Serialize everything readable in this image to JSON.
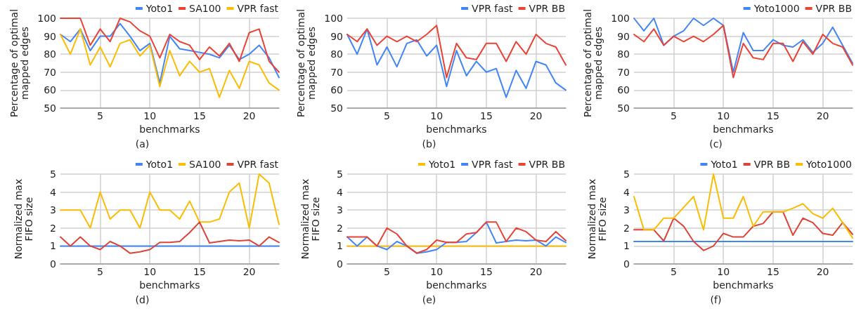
{
  "chart_data": [
    {
      "type": "line",
      "xlabel": "benchmarks",
      "ylabel": "Percentage of optimal mapped edges",
      "annotations": [
        "(a)"
      ],
      "x": [
        1,
        2,
        3,
        4,
        5,
        6,
        7,
        8,
        9,
        10,
        11,
        12,
        13,
        14,
        15,
        16,
        17,
        18,
        19,
        20,
        21,
        22,
        23
      ],
      "xlim": [
        1,
        23
      ],
      "xticks": [
        5,
        10,
        15,
        20
      ],
      "ylim": [
        50,
        100
      ],
      "yticks": [
        50,
        60,
        70,
        80,
        90,
        100
      ],
      "grid": true,
      "legend": "top right",
      "series": [
        {
          "name": "Yoto1",
          "color": "#4285f4",
          "values": [
            91,
            87,
            94,
            82,
            90,
            90,
            97,
            90,
            82,
            86,
            64,
            90,
            83,
            82,
            81,
            80,
            78,
            85,
            77,
            80,
            85,
            78,
            67
          ]
        },
        {
          "name": "SA100",
          "color": "#ea4335",
          "values": [
            100,
            100,
            100,
            85,
            94,
            87,
            100,
            98,
            93,
            90,
            78,
            91,
            87,
            85,
            77,
            84,
            79,
            86,
            76,
            92,
            94,
            76,
            70
          ]
        },
        {
          "name": "VPR fast",
          "color": "#fbbc04",
          "values": [
            91,
            80,
            94,
            74,
            84,
            73,
            86,
            88,
            79,
            85,
            62,
            82,
            68,
            76,
            70,
            72,
            56,
            71,
            61,
            76,
            74,
            64,
            60
          ]
        }
      ]
    },
    {
      "type": "line",
      "xlabel": "benchmarks",
      "ylabel": "Percentage of optimal mapped edges",
      "annotations": [
        "(b)"
      ],
      "x": [
        1,
        2,
        3,
        4,
        5,
        6,
        7,
        8,
        9,
        10,
        11,
        12,
        13,
        14,
        15,
        16,
        17,
        18,
        19,
        20,
        21,
        22,
        23
      ],
      "xlim": [
        1,
        23
      ],
      "xticks": [
        5,
        10,
        15,
        20
      ],
      "ylim": [
        50,
        100
      ],
      "yticks": [
        50,
        60,
        70,
        80,
        90,
        100
      ],
      "grid": true,
      "legend": "top right",
      "series": [
        {
          "name": "VPR fast",
          "color": "#4285f4",
          "values": [
            91,
            80,
            94,
            74,
            84,
            73,
            86,
            88,
            79,
            85,
            62,
            82,
            68,
            76,
            70,
            72,
            56,
            71,
            61,
            76,
            74,
            64,
            60
          ]
        },
        {
          "name": "VPR BB",
          "color": "#ea4335",
          "values": [
            91,
            87,
            94,
            85,
            90,
            87,
            90,
            87,
            91,
            96,
            67,
            86,
            78,
            77,
            86,
            86,
            76,
            87,
            80,
            91,
            86,
            84,
            74
          ]
        }
      ]
    },
    {
      "type": "line",
      "xlabel": "benchmarks",
      "ylabel": "Percentage of optimal mapped edges",
      "annotations": [
        "(c)"
      ],
      "x": [
        1,
        2,
        3,
        4,
        5,
        6,
        7,
        8,
        9,
        10,
        11,
        12,
        13,
        14,
        15,
        16,
        17,
        18,
        19,
        20,
        21,
        22,
        23
      ],
      "xlim": [
        1,
        23
      ],
      "xticks": [
        5,
        10,
        15,
        20
      ],
      "ylim": [
        50,
        100
      ],
      "yticks": [
        50,
        60,
        70,
        80,
        90,
        100
      ],
      "grid": true,
      "legend": "top right",
      "series": [
        {
          "name": "Yoto1000",
          "color": "#4285f4",
          "values": [
            100,
            93,
            100,
            85,
            90,
            93,
            100,
            96,
            100,
            96,
            70,
            92,
            82,
            82,
            88,
            85,
            84,
            88,
            81,
            86,
            95,
            85,
            75
          ]
        },
        {
          "name": "VPR BB",
          "color": "#ea4335",
          "values": [
            91,
            87,
            94,
            85,
            90,
            87,
            90,
            87,
            91,
            96,
            67,
            86,
            78,
            77,
            86,
            86,
            76,
            87,
            80,
            91,
            86,
            84,
            74
          ]
        }
      ]
    },
    {
      "type": "line",
      "xlabel": "benchmarks",
      "ylabel": "Normalized max FIFO size",
      "annotations": [
        "(d)"
      ],
      "x": [
        1,
        2,
        3,
        4,
        5,
        6,
        7,
        8,
        9,
        10,
        11,
        12,
        13,
        14,
        15,
        16,
        17,
        18,
        19,
        20,
        21,
        22,
        23
      ],
      "xlim": [
        1,
        23
      ],
      "xticks": [
        5,
        10,
        15,
        20
      ],
      "ylim": [
        0,
        5
      ],
      "yticks": [
        0,
        1,
        2,
        3,
        4,
        5
      ],
      "grid": true,
      "legend": "top right",
      "series": [
        {
          "name": "Yoto1",
          "color": "#4285f4",
          "values": [
            1,
            1,
            1,
            1,
            1,
            1,
            1,
            1,
            1,
            1,
            1,
            1,
            1,
            1,
            1,
            1,
            1,
            1,
            1,
            1,
            1,
            1,
            1
          ]
        },
        {
          "name": "SA100",
          "color": "#fbbc04",
          "values": [
            3,
            3,
            3,
            2,
            4,
            2.5,
            3,
            3,
            2,
            4,
            3,
            3,
            2.5,
            3.5,
            2.33,
            2.33,
            2.5,
            4,
            4.5,
            2,
            5,
            4.5,
            2.2
          ]
        },
        {
          "name": "VPR fast",
          "color": "#db4437",
          "values": [
            1.5,
            1,
            1.5,
            1,
            0.8,
            1.25,
            1,
            0.6,
            0.67,
            0.8,
            1.2,
            1.2,
            1.25,
            1.75,
            2.33,
            1.17,
            1.25,
            1.33,
            1.29,
            1.33,
            1,
            1.5,
            1.2
          ]
        }
      ]
    },
    {
      "type": "line",
      "xlabel": "benchmarks",
      "ylabel": "Normalized max FIFO size",
      "annotations": [
        "(e)"
      ],
      "x": [
        1,
        2,
        3,
        4,
        5,
        6,
        7,
        8,
        9,
        10,
        11,
        12,
        13,
        14,
        15,
        16,
        17,
        18,
        19,
        20,
        21,
        22,
        23
      ],
      "xlim": [
        1,
        23
      ],
      "xticks": [
        5,
        10,
        15,
        20
      ],
      "ylim": [
        0,
        5
      ],
      "yticks": [
        0,
        1,
        2,
        3,
        4,
        5
      ],
      "grid": true,
      "legend": "top right",
      "series": [
        {
          "name": "Yoto1",
          "color": "#fbbc04",
          "values": [
            1,
            1,
            1,
            1,
            1,
            1,
            1,
            1,
            1,
            1,
            1,
            1,
            1,
            1,
            1,
            1,
            1,
            1,
            1,
            1,
            1,
            1,
            1
          ]
        },
        {
          "name": "VPR fast",
          "color": "#4285f4",
          "values": [
            1.5,
            1,
            1.5,
            1,
            0.8,
            1.25,
            1,
            0.6,
            0.67,
            0.8,
            1.2,
            1.2,
            1.25,
            1.75,
            2.33,
            1.17,
            1.25,
            1.33,
            1.29,
            1.33,
            1,
            1.5,
            1.2
          ]
        },
        {
          "name": "VPR BB",
          "color": "#ea4335",
          "values": [
            1.5,
            1.5,
            1.5,
            1,
            2,
            1.67,
            1,
            0.6,
            0.8,
            1.33,
            1.2,
            1.2,
            1.67,
            1.75,
            2.33,
            2.33,
            1.25,
            2,
            1.8,
            1.33,
            1.25,
            1.8,
            1.3
          ]
        }
      ]
    },
    {
      "type": "line",
      "xlabel": "benchmarks",
      "ylabel": "Normalized max FIFO size",
      "annotations": [
        "(f)"
      ],
      "x": [
        1,
        2,
        3,
        4,
        5,
        6,
        7,
        8,
        9,
        10,
        11,
        12,
        13,
        14,
        15,
        16,
        17,
        18,
        19,
        20,
        21,
        22,
        23
      ],
      "xlim": [
        1,
        23
      ],
      "xticks": [
        5,
        10,
        15,
        20
      ],
      "ylim": [
        0,
        5
      ],
      "yticks": [
        0,
        1,
        2,
        3,
        4,
        5
      ],
      "grid": true,
      "legend": "top right",
      "series": [
        {
          "name": "Yoto1",
          "color": "#4285f4",
          "values": [
            1.25,
            1.25,
            1.25,
            1.25,
            1.25,
            1.25,
            1.25,
            1.25,
            1.25,
            1.25,
            1.25,
            1.25,
            1.25,
            1.25,
            1.25,
            1.25,
            1.25,
            1.25,
            1.25,
            1.25,
            1.25,
            1.25,
            1.25
          ]
        },
        {
          "name": "VPR BB",
          "color": "#db4437",
          "values": [
            1.9,
            1.9,
            1.9,
            1.28,
            2.55,
            2.1,
            1.25,
            0.75,
            1,
            1.7,
            1.5,
            1.5,
            2.1,
            2.25,
            2.9,
            2.9,
            1.6,
            2.55,
            2.3,
            1.7,
            1.6,
            2.3,
            1.65
          ]
        },
        {
          "name": "Yoto1000",
          "color": "#fbbc04",
          "values": [
            3.75,
            1.9,
            1.9,
            2.55,
            2.55,
            3.15,
            3.75,
            1.9,
            5,
            2.55,
            2.55,
            3.75,
            2.1,
            2.9,
            2.9,
            2.9,
            3.1,
            3.35,
            2.8,
            2.55,
            3.1,
            2.3,
            1.45
          ]
        }
      ]
    }
  ]
}
